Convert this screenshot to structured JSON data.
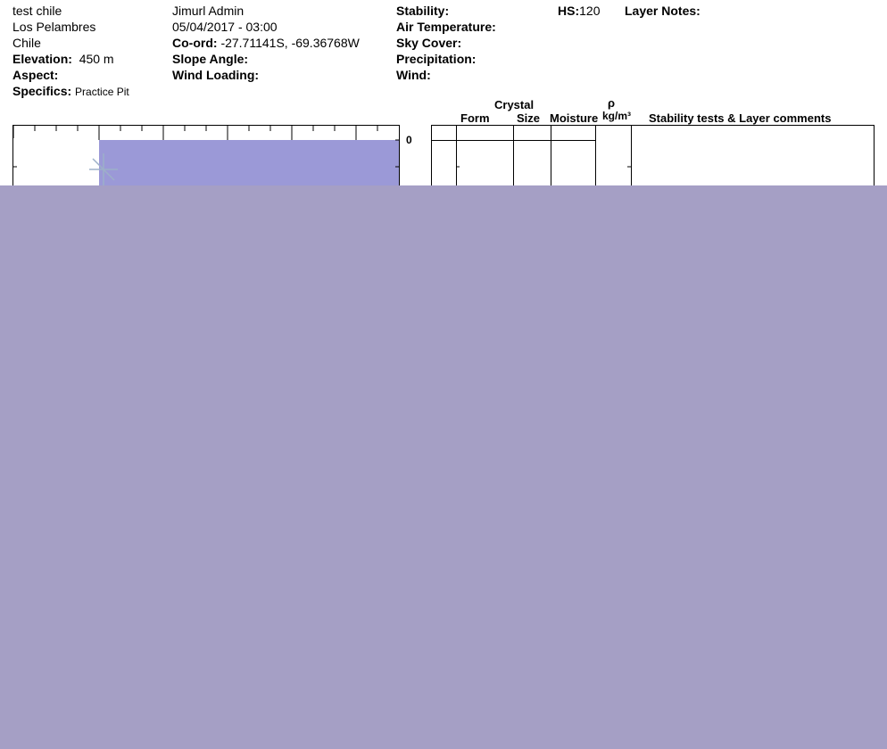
{
  "site": {
    "name": "test chile",
    "area": "Los Pelambres",
    "country": "Chile"
  },
  "observer": "Jimurl Admin",
  "datetime": "05/04/2017 - 03:00",
  "fields": [
    {
      "label": "Elevation:",
      "value": "450 m"
    },
    {
      "label": "Aspect:"
    },
    {
      "label": "Specifics:",
      "value": "Practice Pit"
    },
    {
      "label": "Co-ord:",
      "value": "-27.71141S, -69.36768W"
    },
    {
      "label": "Slope Angle:"
    },
    {
      "label": "Wind Loading:"
    },
    {
      "label": "Stability:"
    },
    {
      "label": "Air Temperature:"
    },
    {
      "label": "Sky Cover:"
    },
    {
      "label": "Precipitation:"
    },
    {
      "label": "Wind:"
    },
    {
      "label": "HS:",
      "value": "120"
    },
    {
      "label": "Layer Notes:"
    }
  ],
  "table_headers": {
    "crystal": "Crystal",
    "form": "Form",
    "size": "Size",
    "moisture": "Moisture",
    "rho": "ρ",
    "density_unit": "kg/m³",
    "comments": "Stability tests & Layer comments"
  },
  "graph": {
    "depth_label": "0"
  }
}
